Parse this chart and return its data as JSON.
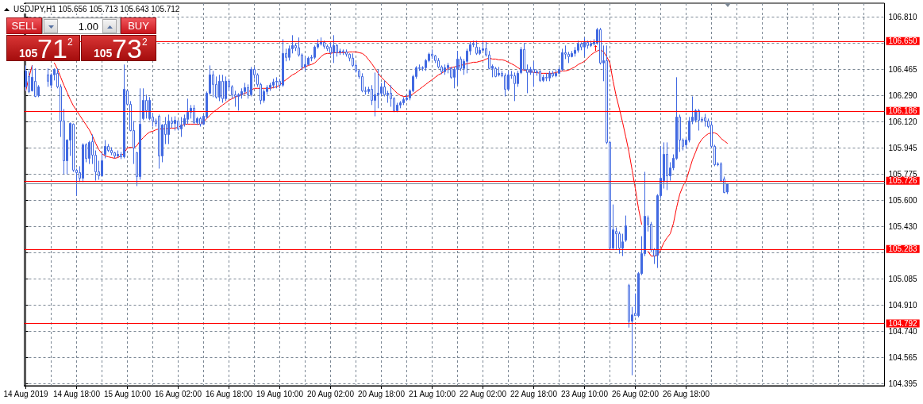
{
  "chart_data": {
    "type": "candlestick",
    "title": "USDJPY,H1 105.656 105.713 105.643 105.712",
    "annotations": [
      "SELL",
      "1.00",
      "BUY",
      "105",
      "71",
      "2",
      "105",
      "73",
      "2"
    ],
    "categories": [
      "14 Aug 2019",
      null,
      null,
      null,
      null,
      null,
      null,
      null,
      null,
      null,
      null,
      null,
      null,
      null,
      null,
      null,
      "14 Aug 18:00",
      null,
      null,
      null,
      null,
      null,
      null,
      null,
      null,
      null,
      null,
      null,
      null,
      null,
      null,
      null,
      "15 Aug 10:00",
      null,
      null,
      null,
      null,
      null,
      null,
      null,
      null,
      null,
      null,
      null,
      null,
      null,
      null,
      null,
      "16 Aug 02:00",
      null,
      null,
      null,
      null,
      null,
      null,
      null,
      null,
      null,
      null,
      null,
      null,
      null,
      null,
      null,
      "16 Aug 18:00",
      null,
      null,
      null,
      null,
      null,
      null,
      null,
      null,
      null,
      null,
      null,
      null,
      null,
      null,
      null,
      "19 Aug 10:00",
      null,
      null,
      null,
      null,
      null,
      null,
      null,
      null,
      null,
      null,
      null,
      null,
      null,
      null,
      null,
      "20 Aug 02:00",
      null,
      null,
      null,
      null,
      null,
      null,
      null,
      null,
      null,
      null,
      null,
      null,
      null,
      null,
      null,
      "20 Aug 18:00",
      null,
      null,
      null,
      null,
      null,
      null,
      null,
      null,
      null,
      null,
      null,
      null,
      null,
      null,
      null,
      "21 Aug 10:00",
      null,
      null,
      null,
      null,
      null,
      null,
      null,
      null,
      null,
      null,
      null,
      null,
      null,
      null,
      null,
      "22 Aug 02:00",
      null,
      null,
      null,
      null,
      null,
      null,
      null,
      null,
      null,
      null,
      null,
      null,
      null,
      null,
      null,
      "22 Aug 18:00",
      null,
      null,
      null,
      null,
      null,
      null,
      null,
      null,
      null,
      null,
      null,
      null,
      null,
      null,
      null,
      "23 Aug 10:00",
      null,
      null,
      null,
      null,
      null,
      null,
      null,
      null,
      null,
      null,
      null,
      null,
      null,
      null,
      null,
      "26 Aug 02:00",
      null,
      null,
      null,
      null,
      null,
      null,
      null,
      null,
      null,
      null,
      null,
      null,
      null,
      null,
      null,
      "26 Aug 18:00",
      null,
      null,
      null,
      null,
      null,
      null,
      null,
      null,
      null,
      null,
      null,
      null,
      null,
      null,
      null,
      null,
      null,
      null,
      null,
      null,
      null,
      null,
      null,
      null,
      null,
      null,
      null,
      null,
      null,
      null,
      null,
      null,
      null,
      null,
      null,
      null,
      null,
      null,
      null,
      null,
      null,
      null,
      null,
      null,
      null,
      null,
      null,
      null,
      null,
      null,
      null,
      null,
      null,
      null,
      null,
      null,
      null,
      null,
      null,
      null,
      null,
      null
    ],
    "series": [
      {
        "type": "candlestick",
        "color": "#4169e1",
        "ohlc": [
          [
            106.349,
            106.49,
            106.323,
            106.454
          ],
          [
            106.417,
            106.454,
            106.307,
            106.318
          ],
          [
            106.323,
            106.49,
            106.318,
            106.412
          ],
          [
            106.386,
            106.47,
            106.281,
            106.286
          ],
          [
            106.292,
            106.36,
            106.281,
            106.349
          ],
          null,
          null,
          [
            106.428,
            106.47,
            106.349,
            106.386
          ],
          [
            106.36,
            106.438,
            106.339,
            106.428
          ],
          [
            106.428,
            106.47,
            106.391,
            106.464
          ],
          [
            106.438,
            106.47,
            106.339,
            106.349
          ],
          [
            106.349,
            106.365,
            106.019,
            106.124
          ],
          [
            106.124,
            106.203,
            105.773,
            105.862
          ],
          [
            105.862,
            106.004,
            105.773,
            105.998
          ],
          [
            105.998,
            106.114,
            105.894,
            106.108
          ],
          [
            106.103,
            106.108,
            105.789,
            105.8
          ],
          [
            105.8,
            105.81,
            105.632,
            105.784
          ],
          [
            105.784,
            105.826,
            105.721,
            105.747
          ],
          [
            105.747,
            105.977,
            105.721,
            105.967
          ],
          [
            105.967,
            105.977,
            105.852,
            105.878
          ],
          [
            105.878,
            105.993,
            105.841,
            105.983
          ],
          [
            105.988,
            106.035,
            105.841,
            105.899
          ],
          [
            105.899,
            105.93,
            105.731,
            105.789
          ],
          [
            105.789,
            105.862,
            105.737,
            105.763
          ],
          [
            105.763,
            105.915,
            105.758,
            105.862
          ],
          [
            105.904,
            105.998,
            105.878,
            105.957
          ],
          [
            105.957,
            105.972,
            105.92,
            105.93
          ],
          [
            105.93,
            105.951,
            105.899,
            105.915
          ],
          [
            105.915,
            105.92,
            105.878,
            105.894
          ],
          [
            105.894,
            105.93,
            105.883,
            105.904
          ],
          [
            105.904,
            105.92,
            105.873,
            105.888
          ],
          [
            105.888,
            106.496,
            105.878,
            106.333
          ],
          [
            106.323,
            106.328,
            106.229,
            106.234
          ],
          [
            106.234,
            106.255,
            106.056,
            106.061
          ],
          [
            106.061,
            106.124,
            105.841,
            105.946
          ],
          [
            105.915,
            105.92,
            105.695,
            105.758
          ],
          [
            105.758,
            106.339,
            105.737,
            106.103
          ],
          [
            106.14,
            106.339,
            106.129,
            106.26
          ],
          [
            106.26,
            106.297,
            106.14,
            106.192
          ],
          [
            106.14,
            106.281,
            106.129,
            106.26
          ],
          [
            106.15,
            106.176,
            106.087,
            106.124
          ],
          [
            106.124,
            106.14,
            106.087,
            106.108
          ],
          [
            106.155,
            106.166,
            105.81,
            105.894
          ],
          [
            105.894,
            106.103,
            105.852,
            106.098
          ],
          [
            106.103,
            106.15,
            105.972,
            106.035
          ],
          [
            106.035,
            106.166,
            105.972,
            106.124
          ],
          [
            106.124,
            106.15,
            106.077,
            106.108
          ],
          [
            106.108,
            106.155,
            106.061,
            106.129
          ],
          [
            106.124,
            106.129,
            106.061,
            106.072
          ],
          [
            106.072,
            106.15,
            106.019,
            106.098
          ],
          [
            106.103,
            106.166,
            106.087,
            106.14
          ],
          [
            106.135,
            106.271,
            106.103,
            106.182
          ],
          [
            106.182,
            106.229,
            106.14,
            106.208
          ],
          [
            106.208,
            106.229,
            106.103,
            106.114
          ],
          [
            106.114,
            106.15,
            106.098,
            106.14
          ],
          [
            106.14,
            106.15,
            106.087,
            106.103
          ],
          [
            106.103,
            106.166,
            106.098,
            106.155
          ],
          [
            106.15,
            106.318,
            106.14,
            106.307
          ],
          [
            106.307,
            106.49,
            106.297,
            106.428
          ],
          [
            106.428,
            106.454,
            106.281,
            106.365
          ],
          [
            106.365,
            106.417,
            106.271,
            106.281
          ],
          [
            106.281,
            106.428,
            106.255,
            106.386
          ],
          [
            106.386,
            106.428,
            106.244,
            106.271
          ],
          [
            106.271,
            106.417,
            106.255,
            106.386
          ],
          [
            106.386,
            106.402,
            106.323,
            106.349
          ],
          [
            106.349,
            106.36,
            106.271,
            106.297
          ],
          [
            106.297,
            106.323,
            106.218,
            106.286
          ],
          [
            106.286,
            106.307,
            106.192,
            106.297
          ],
          [
            106.297,
            106.339,
            106.271,
            106.318
          ],
          [
            106.318,
            106.375,
            106.297,
            106.344
          ],
          [
            106.344,
            106.365,
            106.271,
            106.297
          ],
          [
            106.297,
            106.48,
            106.286,
            106.464
          ],
          [
            106.464,
            106.48,
            106.402,
            106.428
          ],
          [
            106.428,
            106.438,
            106.349,
            106.365
          ],
          [
            106.365,
            106.375,
            106.234,
            106.26
          ],
          [
            106.26,
            106.333,
            106.244,
            106.318
          ],
          [
            106.318,
            106.36,
            106.297,
            106.344
          ],
          [
            106.344,
            106.375,
            106.323,
            106.36
          ],
          [
            106.36,
            106.402,
            106.339,
            106.381
          ],
          [
            106.381,
            106.412,
            106.339,
            106.386
          ],
          [
            106.386,
            106.402,
            106.339,
            106.36
          ],
          [
            106.36,
            106.663,
            106.349,
            106.569
          ],
          [
            106.569,
            106.6,
            106.517,
            106.543
          ],
          [
            106.543,
            106.621,
            106.522,
            106.6
          ],
          [
            106.6,
            106.689,
            106.569,
            106.621
          ],
          [
            106.621,
            106.637,
            106.585,
            106.606
          ],
          [
            106.606,
            106.674,
            106.548,
            106.559
          ],
          [
            106.559,
            106.569,
            106.464,
            106.48
          ],
          [
            106.48,
            106.548,
            106.454,
            106.496
          ],
          [
            106.496,
            106.548,
            106.49,
            106.538
          ],
          [
            106.538,
            106.559,
            106.517,
            106.543
          ],
          [
            106.543,
            106.621,
            106.532,
            106.611
          ],
          [
            106.611,
            106.663,
            106.6,
            106.632
          ],
          [
            106.632,
            106.674,
            106.621,
            106.642
          ],
          [
            106.642,
            106.653,
            106.6,
            106.616
          ],
          [
            106.616,
            106.627,
            106.585,
            106.6
          ],
          [
            106.611,
            106.637,
            106.559,
            106.574
          ],
          [
            106.574,
            106.689,
            106.506,
            106.621
          ],
          [
            106.621,
            106.632,
            106.548,
            106.574
          ],
          [
            106.574,
            106.6,
            106.559,
            106.585
          ],
          [
            106.585,
            106.595,
            106.559,
            106.579
          ],
          [
            106.579,
            106.595,
            106.548,
            106.564
          ],
          [
            106.564,
            106.569,
            106.517,
            106.538
          ],
          [
            106.538,
            106.569,
            106.48,
            106.49
          ],
          [
            106.49,
            106.506,
            106.443,
            106.454
          ],
          [
            106.454,
            106.464,
            106.402,
            106.417
          ],
          [
            106.417,
            106.438,
            106.313,
            106.323
          ],
          [
            106.323,
            106.349,
            106.297,
            106.318
          ],
          [
            106.318,
            106.349,
            106.302,
            106.333
          ],
          [
            106.333,
            106.36,
            106.229,
            106.26
          ],
          [
            106.26,
            106.443,
            106.155,
            106.297
          ],
          [
            106.297,
            106.464,
            106.208,
            106.307
          ],
          [
            106.307,
            106.375,
            106.286,
            106.349
          ],
          [
            106.349,
            106.391,
            106.286,
            106.297
          ],
          [
            106.297,
            106.323,
            106.244,
            106.307
          ],
          [
            106.307,
            106.36,
            106.218,
            106.271
          ],
          [
            106.271,
            106.281,
            106.182,
            106.192
          ],
          [
            106.192,
            106.244,
            106.182,
            106.229
          ],
          [
            106.229,
            106.255,
            106.208,
            106.244
          ],
          [
            106.244,
            106.281,
            106.229,
            106.265
          ],
          [
            106.265,
            106.297,
            106.255,
            106.276
          ],
          [
            106.276,
            106.333,
            106.26,
            106.323
          ],
          [
            106.323,
            106.428,
            106.313,
            106.417
          ],
          [
            106.417,
            106.485,
            106.402,
            106.475
          ],
          [
            106.475,
            106.496,
            106.454,
            106.47
          ],
          [
            106.47,
            106.485,
            106.454,
            106.475
          ],
          [
            106.475,
            106.532,
            106.454,
            106.522
          ],
          [
            106.522,
            106.574,
            106.511,
            106.564
          ],
          [
            106.564,
            106.595,
            106.532,
            106.553
          ],
          [
            106.553,
            106.559,
            106.506,
            106.522
          ],
          [
            106.522,
            106.538,
            106.47,
            106.48
          ],
          [
            106.48,
            106.49,
            106.433,
            106.449
          ],
          [
            106.449,
            106.496,
            106.428,
            106.475
          ],
          [
            106.475,
            106.506,
            106.438,
            106.49
          ],
          [
            106.47,
            106.48,
            106.402,
            106.412
          ],
          [
            106.412,
            106.48,
            106.339,
            106.464
          ],
          [
            106.464,
            106.585,
            106.36,
            106.532
          ],
          [
            106.532,
            106.548,
            106.454,
            106.47
          ],
          [
            106.47,
            106.532,
            106.428,
            106.517
          ],
          [
            106.517,
            106.6,
            106.438,
            106.585
          ],
          [
            106.585,
            106.648,
            106.559,
            106.627
          ],
          [
            106.627,
            106.653,
            106.611,
            106.632
          ],
          [
            106.611,
            106.653,
            106.559,
            106.569
          ],
          [
            106.569,
            106.611,
            106.559,
            106.59
          ],
          [
            106.59,
            106.653,
            106.585,
            106.6
          ],
          [
            106.6,
            106.648,
            106.548,
            106.559
          ],
          [
            106.559,
            106.585,
            106.464,
            106.47
          ],
          [
            106.47,
            106.496,
            106.412,
            106.485
          ],
          [
            106.47,
            106.48,
            106.412,
            106.417
          ],
          [
            106.428,
            106.48,
            106.417,
            106.438
          ],
          [
            106.438,
            106.454,
            106.412,
            106.422
          ],
          [
            106.422,
            106.438,
            106.286,
            106.333
          ],
          [
            106.333,
            106.454,
            106.323,
            106.428
          ],
          [
            106.428,
            106.454,
            106.402,
            106.422
          ],
          [
            106.422,
            106.443,
            106.255,
            106.37
          ],
          [
            106.37,
            106.454,
            106.349,
            106.438
          ],
          [
            106.443,
            106.611,
            106.433,
            106.595
          ],
          [
            106.595,
            106.637,
            106.454,
            106.464
          ],
          [
            106.464,
            106.496,
            106.307,
            106.443
          ],
          [
            106.443,
            106.48,
            106.428,
            106.464
          ],
          [
            106.464,
            106.517,
            106.349,
            106.443
          ],
          [
            106.443,
            106.464,
            106.422,
            106.449
          ],
          [
            106.449,
            106.459,
            106.381,
            106.391
          ],
          [
            106.391,
            106.428,
            106.381,
            106.412
          ],
          [
            106.412,
            106.438,
            106.386,
            106.407
          ],
          [
            106.407,
            106.454,
            106.386,
            106.438
          ],
          [
            106.438,
            106.454,
            106.412,
            106.422
          ],
          [
            106.422,
            106.464,
            106.412,
            106.438
          ],
          [
            106.438,
            106.48,
            106.433,
            106.464
          ],
          [
            106.464,
            106.6,
            106.454,
            106.574
          ],
          [
            106.574,
            106.621,
            106.532,
            106.564
          ],
          [
            106.564,
            106.579,
            106.506,
            106.548
          ],
          [
            106.548,
            106.585,
            106.543,
            106.569
          ],
          [
            106.569,
            106.611,
            106.548,
            106.59
          ],
          [
            106.59,
            106.653,
            106.574,
            106.632
          ],
          [
            106.632,
            106.642,
            106.59,
            106.611
          ],
          [
            106.611,
            106.674,
            106.548,
            106.642
          ],
          [
            106.642,
            106.653,
            106.6,
            106.621
          ],
          [
            106.621,
            106.653,
            106.611,
            106.632
          ],
          [
            106.632,
            106.663,
            106.621,
            106.648
          ],
          [
            106.637,
            106.737,
            106.627,
            106.726
          ],
          [
            106.726,
            106.737,
            106.496,
            106.506
          ],
          [
            106.506,
            106.621,
            106.386,
            106.522
          ],
          [
            106.522,
            106.621,
            105.972,
            105.983
          ],
          [
            105.983,
            105.993,
            105.276,
            105.286
          ],
          [
            105.286,
            105.574,
            105.276,
            105.407
          ],
          [
            105.396,
            105.423,
            105.276,
            105.381
          ],
          [
            105.381,
            105.396,
            105.25,
            105.286
          ],
          [
            105.286,
            105.381,
            105.234,
            105.328
          ],
          [
            105.339,
            105.501,
            105.328,
            105.433
          ],
          [
            105.04,
            105.051,
            104.763,
            104.805
          ],
          [
            104.805,
            104.899,
            104.449,
            104.847
          ],
          [
            104.857,
            104.988,
            104.841,
            104.841
          ],
          [
            104.841,
            105.129,
            104.831,
            105.119
          ],
          [
            105.119,
            105.365,
            105.109,
            105.25
          ],
          [
            105.25,
            105.789,
            105.234,
            105.496
          ],
          [
            105.485,
            105.501,
            105.396,
            105.444
          ],
          [
            105.444,
            105.459,
            105.26,
            105.276
          ],
          [
            105.276,
            105.286,
            105.182,
            105.234
          ],
          [
            105.239,
            105.642,
            105.156,
            105.632
          ],
          [
            105.632,
            105.957,
            105.616,
            105.747
          ],
          [
            105.731,
            105.983,
            105.679,
            105.904
          ],
          [
            105.904,
            105.983,
            105.669,
            105.763
          ],
          [
            105.763,
            105.852,
            105.731,
            105.815
          ],
          [
            105.815,
            105.904,
            105.8,
            105.878
          ],
          [
            105.878,
            106.412,
            105.868,
            106.15
          ],
          [
            106.15,
            106.166,
            105.92,
            105.998
          ],
          [
            105.998,
            106.009,
            105.93,
            105.957
          ],
          [
            105.967,
            106.009,
            105.941,
            105.998
          ],
          [
            105.998,
            106.15,
            105.983,
            106.124
          ],
          [
            106.124,
            106.286,
            106.103,
            106.15
          ],
          [
            106.129,
            106.203,
            106.114,
            106.192
          ],
          [
            106.192,
            106.203,
            106.061,
            106.129
          ],
          [
            106.129,
            106.15,
            106.114,
            106.135
          ],
          [
            106.145,
            106.171,
            106.087,
            106.124
          ],
          [
            106.124,
            106.14,
            106.077,
            106.087
          ],
          [
            106.098,
            106.124,
            105.946,
            105.957
          ],
          [
            105.957,
            105.967,
            105.826,
            105.836
          ],
          [
            105.836,
            105.852,
            105.826,
            105.841
          ],
          [
            105.841,
            105.852,
            105.721,
            105.731
          ],
          [
            105.742,
            105.758,
            105.648,
            105.653
          ],
          [
            105.656,
            105.713,
            105.643,
            105.712
          ],
          null,
          null,
          null,
          null,
          null,
          null,
          null,
          null,
          null,
          null,
          null,
          null,
          null,
          null,
          null,
          null,
          null,
          null,
          null,
          null,
          null,
          null,
          null,
          null,
          null,
          null,
          null,
          null,
          null,
          null,
          null,
          null,
          null,
          null,
          null,
          null,
          null,
          null,
          null,
          null,
          null,
          null,
          null,
          null,
          null,
          null,
          null,
          null,
          null
        ]
      },
      {
        "type": "line",
        "color": "#ff0000",
        "marker": "none",
        "line_style": "solid",
        "values": [
          106.323,
          106.412,
          106.49,
          null,
          null,
          null,
          null,
          null,
          null,
          106.506,
          106.464,
          106.412,
          106.36,
          106.313,
          106.265,
          106.224,
          106.192,
          106.161,
          106.129,
          106.098,
          106.066,
          106.025,
          105.977,
          105.936,
          105.909,
          105.894,
          105.888,
          105.883,
          105.878,
          105.883,
          105.894,
          105.915,
          105.946,
          105.951,
          105.946,
          105.962,
          105.993,
          106.014,
          106.035,
          106.051,
          106.056,
          106.066,
          106.072,
          106.072,
          106.072,
          106.077,
          106.077,
          106.077,
          106.082,
          106.093,
          106.103,
          106.103,
          106.103,
          106.103,
          106.103,
          106.103,
          106.119,
          106.14,
          106.161,
          106.182,
          106.197,
          106.213,
          106.229,
          106.244,
          106.26,
          106.271,
          106.281,
          106.292,
          106.297,
          106.307,
          106.313,
          106.328,
          106.339,
          106.339,
          106.339,
          106.339,
          106.339,
          106.339,
          106.344,
          106.349,
          106.36,
          106.381,
          106.396,
          106.412,
          106.428,
          106.438,
          106.454,
          106.47,
          106.48,
          106.49,
          106.496,
          106.506,
          106.527,
          106.548,
          106.564,
          106.569,
          106.569,
          106.574,
          106.574,
          106.574,
          106.574,
          106.574,
          106.579,
          106.579,
          106.579,
          106.574,
          106.569,
          106.553,
          106.527,
          106.501,
          106.47,
          106.438,
          106.412,
          106.391,
          106.37,
          106.349,
          106.328,
          106.307,
          106.292,
          106.286,
          106.286,
          106.292,
          106.302,
          106.318,
          106.333,
          106.349,
          106.365,
          106.381,
          106.396,
          106.412,
          106.428,
          106.438,
          106.454,
          106.47,
          106.475,
          106.48,
          106.485,
          106.49,
          106.496,
          106.501,
          106.506,
          106.511,
          106.511,
          106.517,
          106.522,
          106.532,
          106.538,
          106.532,
          106.532,
          106.527,
          106.527,
          106.522,
          106.511,
          106.501,
          106.49,
          106.475,
          106.464,
          106.459,
          106.454,
          106.449,
          106.443,
          106.443,
          106.438,
          106.438,
          106.438,
          106.438,
          106.438,
          106.443,
          106.449,
          106.454,
          106.454,
          106.459,
          106.47,
          106.48,
          106.496,
          106.506,
          106.517,
          106.538,
          106.559,
          106.574,
          106.585,
          106.595,
          106.579,
          106.548,
          106.506,
          106.386,
          106.286,
          106.203,
          106.114,
          106.019,
          105.92,
          105.8,
          105.679,
          105.548,
          105.444,
          null,
          105.266,
          105.234,
          105.234,
          105.239,
          105.276,
          105.323,
          105.355,
          105.381,
          105.449,
          105.553,
          105.642,
          105.695,
          105.731,
          105.8,
          105.868,
          105.92,
          105.972,
          106.004,
          106.025,
          106.04,
          106.046,
          106.046,
          106.035,
          106.009,
          105.993,
          105.977,
          null,
          null,
          null,
          null,
          null,
          null,
          null,
          null,
          null,
          null,
          null,
          null,
          null,
          null,
          null,
          null,
          null,
          null,
          null,
          null,
          null,
          null,
          null,
          null,
          null,
          null,
          null,
          null,
          null,
          null,
          null,
          null,
          null,
          null,
          null,
          null,
          null,
          null,
          null,
          null,
          null,
          null,
          null,
          null,
          null,
          null,
          null,
          null,
          null
        ]
      }
    ],
    "ylim": [
      104.38,
      106.9
    ],
    "yticks": [
      {
        "value": 106.81,
        "label": "106.810"
      },
      {
        "value": 106.635,
        "label": null
      },
      106.465,
      {
        "value": 106.29,
        "label": "106.290"
      },
      {
        "value": 106.12,
        "label": "106.120"
      },
      105.945,
      105.775,
      {
        "value": 105.6,
        "label": "105.600"
      },
      {
        "value": 105.43,
        "label": "105.430"
      },
      {
        "value": 105.255,
        "label": null
      },
      105.085,
      {
        "value": 104.91,
        "label": "104.910"
      },
      {
        "value": 104.74,
        "label": "104.740"
      },
      104.565,
      104.395
    ],
    "grid": true,
    "ref_lines": [
      {
        "axis": "y",
        "value": 106.65,
        "label": "106.650",
        "color": "#ff0000"
      },
      {
        "axis": "y",
        "value": 106.186,
        "label": "106.186",
        "color": "#ff0000"
      },
      {
        "axis": "y",
        "value": 105.726,
        "label": "105.726",
        "color": "#ff0000"
      },
      {
        "axis": "y",
        "value": 105.712,
        "color": "#778899"
      },
      {
        "axis": "y",
        "value": 105.283,
        "label": "105.283",
        "color": "#ff0000"
      },
      {
        "axis": "y",
        "value": 104.792,
        "label": "104.792",
        "color": "#ff0000"
      }
    ]
  }
}
